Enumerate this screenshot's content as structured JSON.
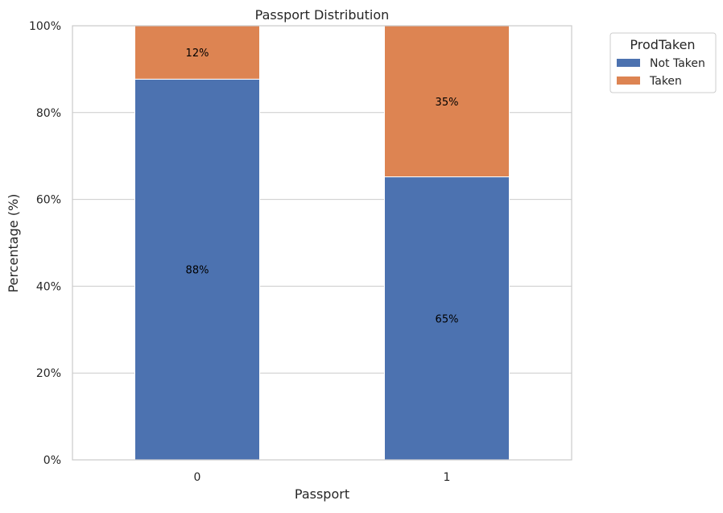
{
  "chart_data": {
    "type": "bar",
    "stacked": true,
    "title": "Passport Distribution",
    "xlabel": "Passport",
    "ylabel": "Percentage (%)",
    "categories": [
      "0",
      "1"
    ],
    "ylim": [
      0,
      100
    ],
    "yticks": [
      0,
      20,
      40,
      60,
      80,
      100
    ],
    "ytick_labels": [
      "0%",
      "20%",
      "40%",
      "60%",
      "80%",
      "100%"
    ],
    "grid": true,
    "legend": {
      "title": "ProdTaken",
      "placement": "outside-top-right"
    },
    "series": [
      {
        "name": "Not Taken",
        "color": "#4c72b0",
        "values": [
          87.7,
          65.2
        ],
        "labels": [
          "88%",
          "65%"
        ]
      },
      {
        "name": "Taken",
        "color": "#dd8452",
        "values": [
          12.3,
          34.8
        ],
        "labels": [
          "12%",
          "35%"
        ]
      }
    ]
  }
}
